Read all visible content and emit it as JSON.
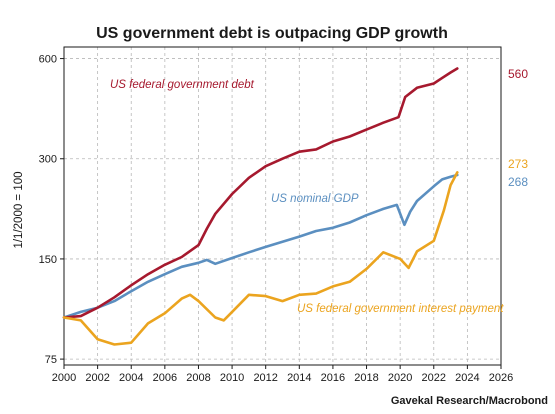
{
  "chart_data": {
    "type": "line",
    "title": "US government debt is outpacing GDP growth",
    "ylabel": "1/1/2000 = 100",
    "source": "Gavekal Research/Macrobond",
    "y_scale": "log",
    "xlim": [
      2000,
      2026
    ],
    "ylim": [
      72,
      650
    ],
    "x_ticks": [
      "2000",
      "2002",
      "2004",
      "2006",
      "2008",
      "2010",
      "2012",
      "2014",
      "2016",
      "2018",
      "2020",
      "2022",
      "2024",
      "2026"
    ],
    "y_ticks": [
      "75",
      "150",
      "300",
      "600"
    ],
    "grid": true,
    "series": [
      {
        "name": "US federal government debt",
        "color": "#a6192e",
        "end_label": "560",
        "x": [
          2000,
          2001,
          2002,
          2003,
          2004,
          2005,
          2006,
          2007,
          2008,
          2008.5,
          2009,
          2010,
          2011,
          2012,
          2013,
          2014,
          2015,
          2016,
          2017,
          2018,
          2019,
          2019.9,
          2020.3,
          2021,
          2022,
          2022.5,
          2023,
          2023.4
        ],
        "y": [
          100,
          101,
          107,
          115,
          125,
          135,
          144,
          152,
          165,
          185,
          205,
          235,
          263,
          285,
          300,
          315,
          320,
          338,
          350,
          367,
          385,
          400,
          460,
          490,
          505,
          525,
          545,
          560
        ]
      },
      {
        "name": "US nominal GDP",
        "color": "#5b8fc0",
        "end_label": "268",
        "x": [
          2000,
          2001,
          2002,
          2003,
          2004,
          2005,
          2006,
          2007,
          2008,
          2008.5,
          2009,
          2010,
          2011,
          2012,
          2013,
          2014,
          2015,
          2016,
          2017,
          2018,
          2019,
          2019.8,
          2020.25,
          2020.6,
          2021,
          2022,
          2022.5,
          2023,
          2023.4
        ],
        "y": [
          100,
          104,
          107,
          112,
          120,
          128,
          135,
          142,
          146,
          149,
          145,
          151,
          157,
          163,
          169,
          175,
          182,
          186,
          193,
          203,
          212,
          218,
          190,
          208,
          224,
          248,
          260,
          265,
          268
        ]
      },
      {
        "name": "US federal government interest payment",
        "color": "#eba41f",
        "end_label": "273",
        "x": [
          2000,
          2001,
          2002,
          2003,
          2004,
          2005,
          2006,
          2007,
          2007.5,
          2008,
          2009,
          2009.5,
          2010,
          2011,
          2012,
          2013,
          2014,
          2015,
          2016,
          2017,
          2018,
          2019,
          2020,
          2020.5,
          2021,
          2022,
          2022.6,
          2023,
          2023.4
        ],
        "y": [
          100,
          98,
          86,
          83,
          84,
          96,
          103,
          114,
          117,
          112,
          100,
          98,
          104,
          117,
          116,
          112,
          117,
          118,
          124,
          128,
          140,
          157,
          150,
          141,
          158,
          170,
          210,
          250,
          273
        ]
      }
    ]
  }
}
